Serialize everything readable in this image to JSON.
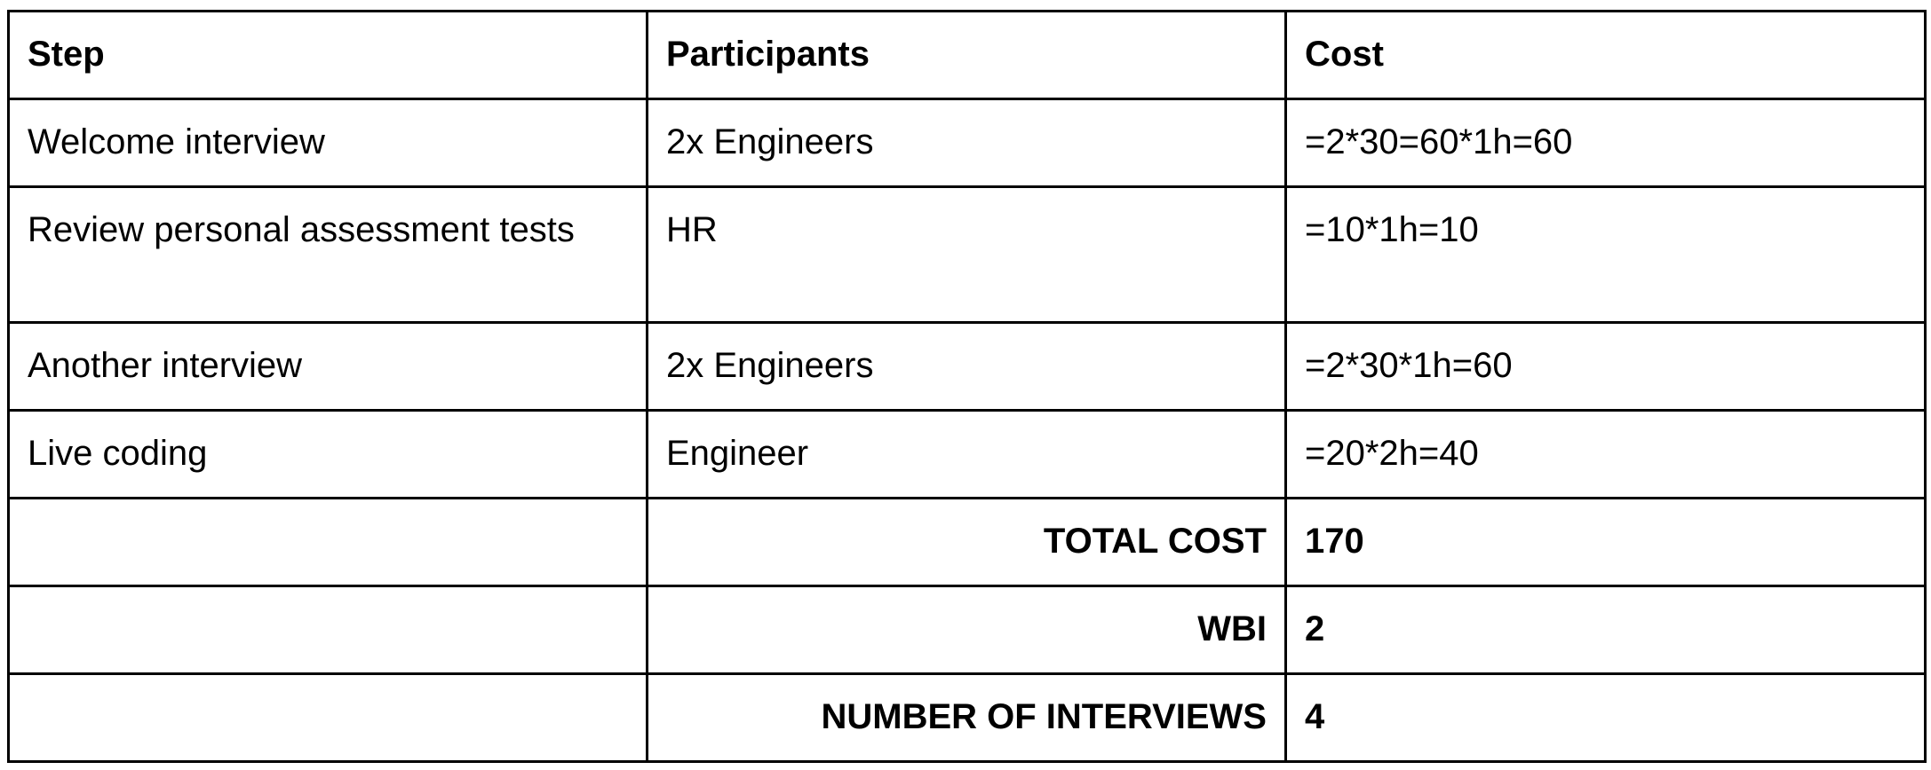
{
  "table": {
    "header": [
      "Step",
      "Participants",
      "Cost"
    ],
    "rows": [
      [
        "Welcome interview",
        "2x Engineers",
        "=2*30=60*1h=60"
      ],
      [
        "Review personal assessment tests",
        "HR",
        "=10*1h=10"
      ],
      [
        "Another interview",
        "2x Engineers",
        "=2*30*1h=60"
      ],
      [
        "Live coding",
        "Engineer",
        "=20*2h=40"
      ]
    ],
    "summary": [
      {
        "label": "TOTAL COST",
        "value": "170"
      },
      {
        "label": "WBI",
        "value": "2"
      },
      {
        "label": "NUMBER OF INTERVIEWS",
        "value": "4"
      }
    ]
  }
}
